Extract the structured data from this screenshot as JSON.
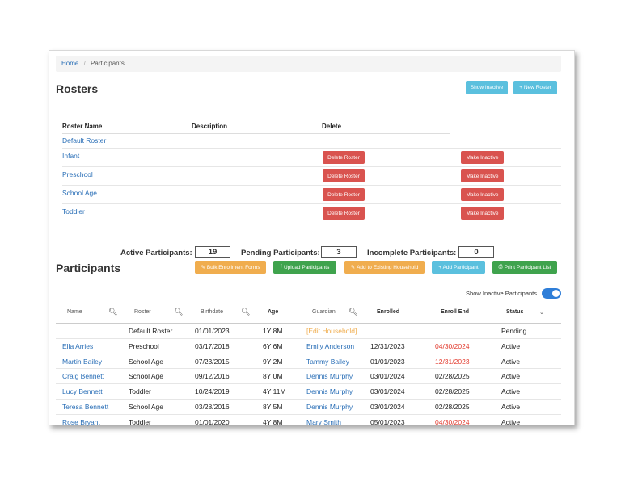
{
  "breadcrumb": {
    "home": "Home",
    "separator": "/",
    "current": "Participants"
  },
  "rosters": {
    "title": "Rosters",
    "show_inactive_label": "Show Inactive",
    "new_roster_label": "+ New Roster",
    "columns": [
      "Roster Name",
      "Description",
      "Delete"
    ],
    "rows": [
      {
        "name": "Default Roster"
      },
      {
        "name": "Infant",
        "delete_label": "Delete Roster",
        "inactive_label": "Make Inactive"
      },
      {
        "name": "Preschool",
        "delete_label": "Delete Roster",
        "inactive_label": "Make Inactive"
      },
      {
        "name": "School Age",
        "delete_label": "Delete Roster",
        "inactive_label": "Make Inactive"
      },
      {
        "name": "Toddler",
        "delete_label": "Delete Roster",
        "inactive_label": "Make Inactive"
      }
    ]
  },
  "counts": {
    "active_label": "Active Participants:",
    "active_value": "19",
    "pending_label": "Pending Participants:",
    "pending_value": "3",
    "incomplete_label": "Incomplete Participants:",
    "incomplete_value": "0"
  },
  "participants": {
    "title": "Participants",
    "buttons": {
      "bulk": "Bulk Enrollment Forms",
      "upload": "Upload Participants",
      "add_household": "Add to Existing Household",
      "add_participant": "+ Add Participant",
      "print": "Print Participant List"
    },
    "show_inactive_label": "Show Inactive Participants",
    "columns": [
      "Name",
      "Roster",
      "Birthdate",
      "Age",
      "Guardian",
      "Enrolled",
      "Enroll End",
      "Status"
    ],
    "rows": [
      {
        "name": ". .",
        "roster": "Default Roster",
        "birthdate": "01/01/2023",
        "age": "1Y 8M",
        "guardian": "[Edit Household]",
        "enrolled": "",
        "enroll_end": "",
        "status": "Pending"
      },
      {
        "name": "Ella Arries",
        "roster": "Preschool",
        "birthdate": "03/17/2018",
        "age": "6Y 6M",
        "guardian": "Emily Anderson",
        "enrolled": "12/31/2023",
        "enroll_end": "04/30/2024",
        "status": "Active"
      },
      {
        "name": "Martin Bailey",
        "roster": "School Age",
        "birthdate": "07/23/2015",
        "age": "9Y 2M",
        "guardian": "Tammy Bailey",
        "enrolled": "01/01/2023",
        "enroll_end": "12/31/2023",
        "status": "Active"
      },
      {
        "name": "Craig Bennett",
        "roster": "School Age",
        "birthdate": "09/12/2016",
        "age": "8Y 0M",
        "guardian": "Dennis Murphy",
        "enrolled": "03/01/2024",
        "enroll_end": "02/28/2025",
        "status": "Active"
      },
      {
        "name": "Lucy Bennett",
        "roster": "Toddler",
        "birthdate": "10/24/2019",
        "age": "4Y 11M",
        "guardian": "Dennis Murphy",
        "enrolled": "03/01/2024",
        "enroll_end": "02/28/2025",
        "status": "Active"
      },
      {
        "name": "Teresa Bennett",
        "roster": "School Age",
        "birthdate": "03/28/2016",
        "age": "8Y 5M",
        "guardian": "Dennis Murphy",
        "enrolled": "03/01/2024",
        "enroll_end": "02/28/2025",
        "status": "Active"
      },
      {
        "name": "Rose Bryant",
        "roster": "Toddler",
        "birthdate": "01/01/2020",
        "age": "4Y 8M",
        "guardian": "Mary Smith",
        "enrolled": "05/01/2023",
        "enroll_end": "04/30/2024",
        "status": "Active"
      }
    ]
  },
  "colors": {
    "link": "#2a6fb7",
    "info": "#5bc0de",
    "danger": "#d9534f",
    "success": "#3fa34d",
    "warning": "#f0ad4e",
    "expired": "#e23b2e"
  }
}
